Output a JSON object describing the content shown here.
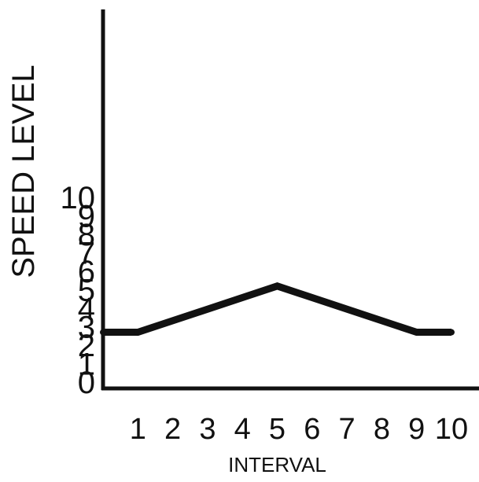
{
  "chart_data": {
    "type": "line",
    "title": "",
    "xlabel": "INTERVAL",
    "ylabel": "SPEED LEVEL",
    "x": [
      0,
      1,
      5,
      9,
      10
    ],
    "y": [
      2.7,
      2.7,
      5.2,
      2.7,
      2.7
    ],
    "x_ticks": [
      "1",
      "2",
      "3",
      "4",
      "5",
      "6",
      "7",
      "8",
      "9",
      "10"
    ],
    "y_ticks": [
      "0",
      "1",
      "2",
      "3",
      "4",
      "5",
      "6",
      "7",
      "8",
      "9",
      "10"
    ],
    "xlim": [
      0,
      10
    ],
    "ylim": [
      0,
      10.6
    ],
    "grid": false,
    "line_color": "#111111"
  }
}
